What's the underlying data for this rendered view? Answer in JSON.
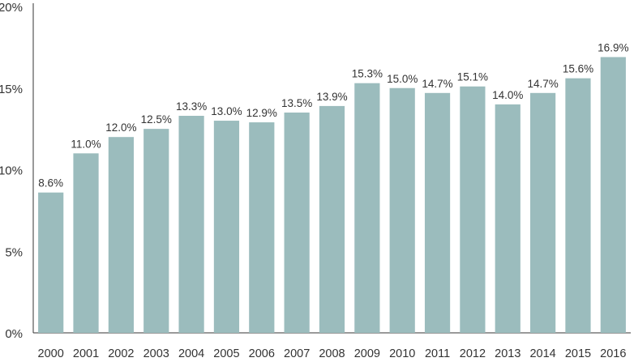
{
  "chart_data": {
    "type": "bar",
    "title": "",
    "xlabel": "",
    "ylabel": "",
    "categories": [
      "2000",
      "2001",
      "2002",
      "2003",
      "2004",
      "2005",
      "2006",
      "2007",
      "2008",
      "2009",
      "2010",
      "2011",
      "2012",
      "2013",
      "2014",
      "2015",
      "2016"
    ],
    "values": [
      8.6,
      11.0,
      12.0,
      12.5,
      13.3,
      13.0,
      12.9,
      13.5,
      13.9,
      15.3,
      15.0,
      14.7,
      15.1,
      14.0,
      14.7,
      15.6,
      16.9
    ],
    "data_labels": [
      "8.6%",
      "11.0%",
      "12.0%",
      "12.5%",
      "13.3%",
      "13.0%",
      "12.9%",
      "13.5%",
      "13.9%",
      "15.3%",
      "15.0%",
      "14.7%",
      "15.1%",
      "14.0%",
      "14.7%",
      "15.6%",
      "16.9%"
    ],
    "ylim": [
      0,
      20
    ],
    "yticks": [
      0,
      5,
      10,
      15,
      20
    ],
    "ytick_labels": [
      "0%",
      "5%",
      "10%",
      "15%",
      "20%"
    ],
    "grid": false,
    "legend": "none",
    "colors": {
      "bar": "#9bbcbd",
      "axis": "#333333",
      "text": "#333333"
    }
  }
}
